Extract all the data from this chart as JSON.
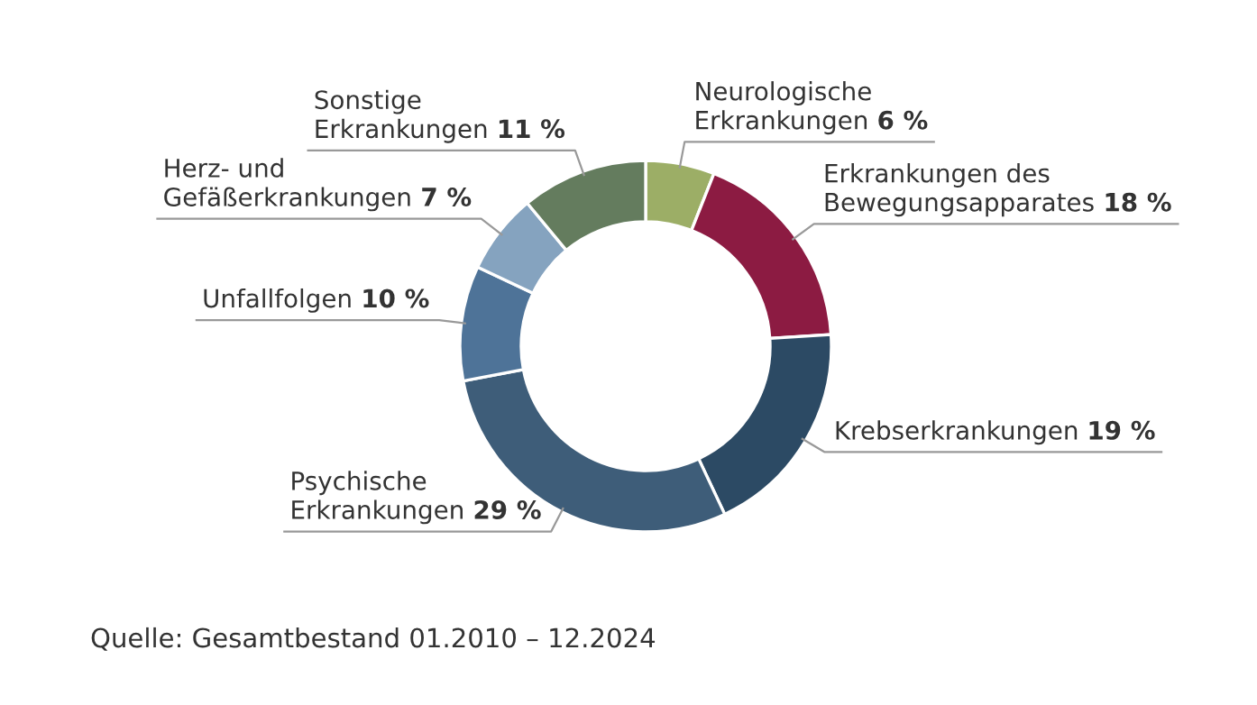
{
  "chart_data": {
    "type": "donut",
    "categories": [
      "Neurologische\nErkrankungen",
      "Erkrankungen des\nBewegungsapparates",
      "Krebserkrankungen",
      "Psychische\nErkrankungen",
      "Unfallfolgen",
      "Herz- und\nGefäßerkrankungen",
      "Sonstige\nErkrankungen"
    ],
    "values": [
      6,
      18,
      19,
      29,
      10,
      7,
      11
    ],
    "value_labels": [
      "6 %",
      "18 %",
      "19 %",
      "29 %",
      "10 %",
      "7 %",
      "11 %"
    ],
    "colors": [
      "#9cae66",
      "#8c1b42",
      "#2c4a64",
      "#3e5d79",
      "#4e7398",
      "#85a3bf",
      "#647c5e"
    ],
    "annotations": [
      "Quelle: Gesamtbestand 01.2010 – 12.2024"
    ]
  }
}
